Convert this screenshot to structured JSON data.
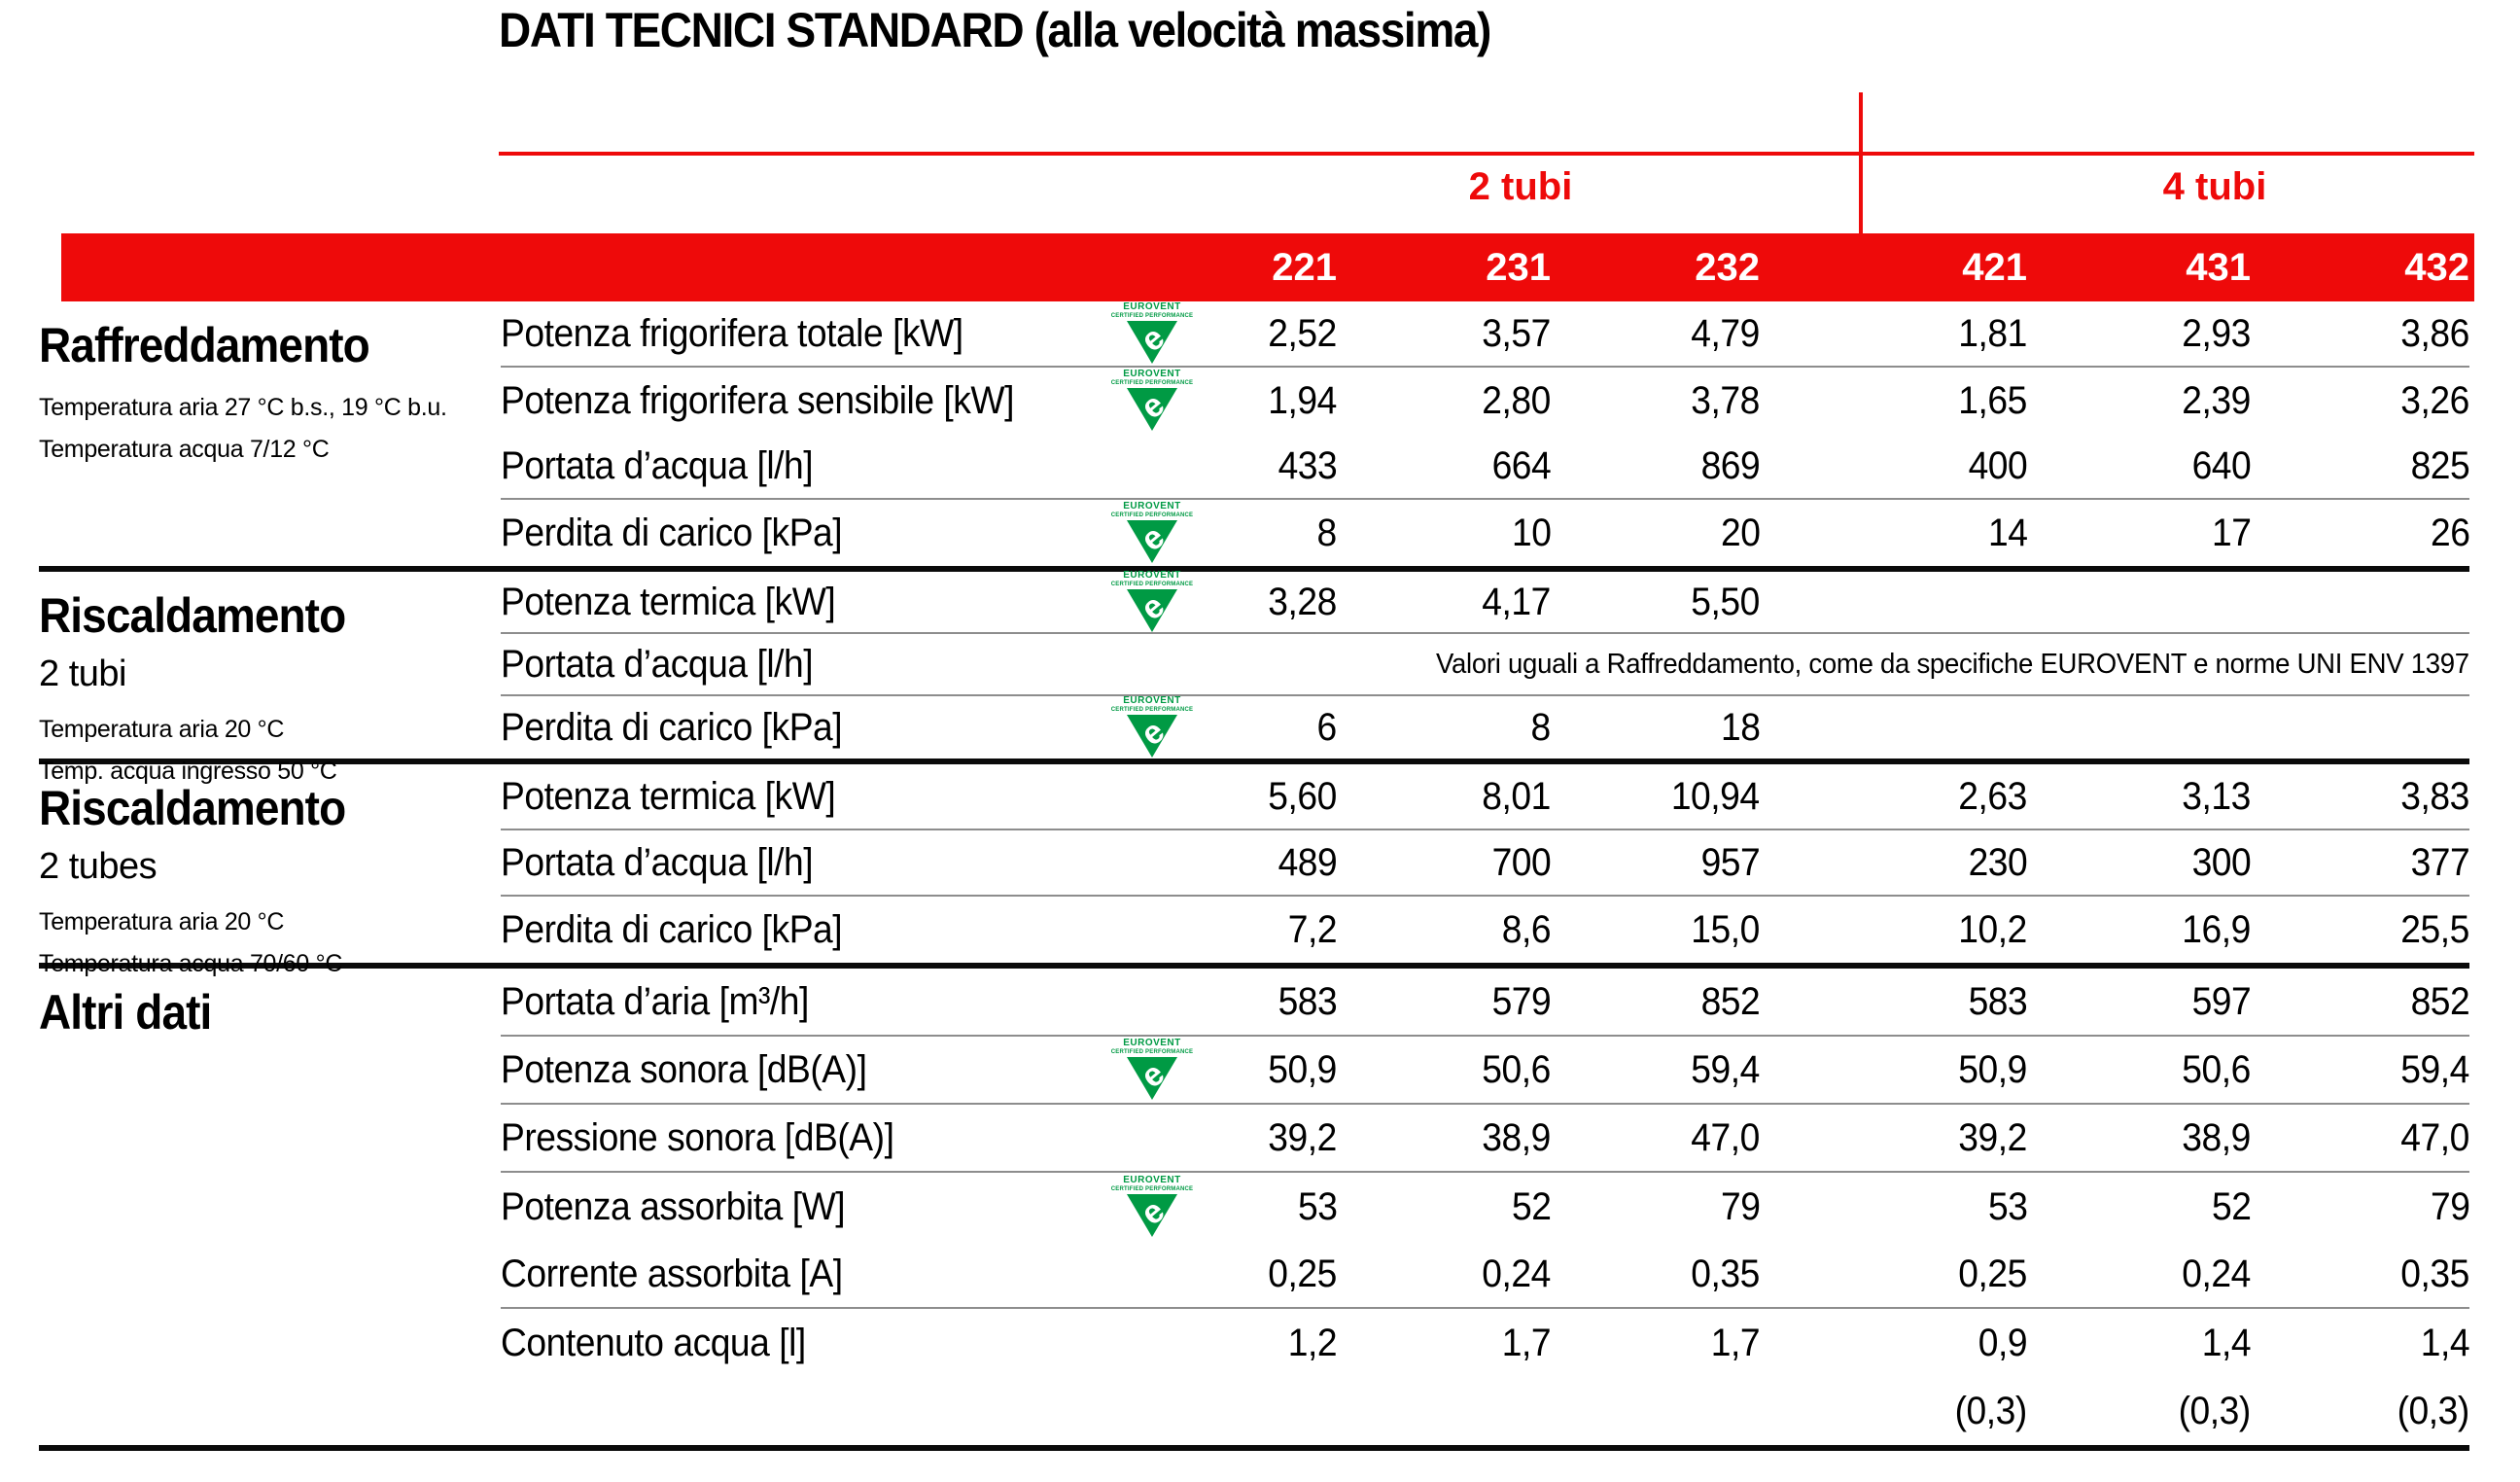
{
  "title": "DATI TECNICI STANDARD (alla velocità massima)",
  "colors": {
    "red": "#ee0a0a",
    "green": "#009a44",
    "divider_gray": "#8d8d8d",
    "section_line_black": "#0a0a0a",
    "text": "#000000"
  },
  "column_groups": [
    {
      "label": "2 tubi"
    },
    {
      "label": "4 tubi"
    }
  ],
  "models": [
    "221",
    "231",
    "232",
    "421",
    "431",
    "432"
  ],
  "eurovent_icon": {
    "line1": "EUROVENT",
    "line2": "CERTIFIED PERFORMANCE"
  },
  "sections": [
    {
      "title": "Raffreddamento",
      "subtitle": "",
      "conditions": [
        "Temperatura aria 27 °C b.s., 19 °C b.u.",
        "Temperatura acqua 7/12 °C"
      ],
      "rows": [
        {
          "label": "Potenza frigorifera totale [kW]",
          "eurovent": true,
          "divider": true,
          "values": [
            "2,52",
            "3,57",
            "4,79",
            "1,81",
            "2,93",
            "3,86"
          ]
        },
        {
          "label": "Potenza frigorifera sensibile [kW]",
          "eurovent": true,
          "divider": false,
          "values": [
            "1,94",
            "2,80",
            "3,78",
            "1,65",
            "2,39",
            "3,26"
          ]
        },
        {
          "label": "Portata d’acqua [l/h]",
          "eurovent": false,
          "divider": true,
          "values": [
            "433",
            "664",
            "869",
            "400",
            "640",
            "825"
          ]
        },
        {
          "label": "Perdita di carico [kPa]",
          "eurovent": true,
          "divider": false,
          "values": [
            "8",
            "10",
            "20",
            "14",
            "17",
            "26"
          ]
        }
      ]
    },
    {
      "title": "Riscaldamento",
      "subtitle": "2 tubi",
      "conditions": [
        "Temperatura aria 20 °C",
        "Temp. acqua ingresso 50 °C"
      ],
      "rows": [
        {
          "label": "Potenza termica [kW]",
          "eurovent": true,
          "divider": true,
          "values": [
            "3,28",
            "4,17",
            "5,50",
            "",
            "",
            ""
          ]
        },
        {
          "label": "Portata d’acqua [l/h]",
          "eurovent": false,
          "divider": true,
          "note": "Valori uguali a Raffreddamento, come da specifiche EUROVENT e norme UNI ENV 1397"
        },
        {
          "label": "Perdita di carico [kPa]",
          "eurovent": true,
          "divider": false,
          "values": [
            "6",
            "8",
            "18",
            "",
            "",
            ""
          ]
        }
      ]
    },
    {
      "title": "Riscaldamento",
      "subtitle": "2 tubes",
      "conditions": [
        "Temperatura aria 20 °C",
        "Temperatura acqua 70/60 °C"
      ],
      "rows": [
        {
          "label": "Potenza termica [kW]",
          "eurovent": false,
          "divider": true,
          "values": [
            "5,60",
            "8,01",
            "10,94",
            "2,63",
            "3,13",
            "3,83"
          ]
        },
        {
          "label": "Portata d’acqua [l/h]",
          "eurovent": false,
          "divider": true,
          "values": [
            "489",
            "700",
            "957",
            "230",
            "300",
            "377"
          ]
        },
        {
          "label": "Perdita di carico [kPa]",
          "eurovent": false,
          "divider": false,
          "values": [
            "7,2",
            "8,6",
            "15,0",
            "10,2",
            "16,9",
            "25,5"
          ]
        }
      ]
    },
    {
      "title": "Altri dati",
      "subtitle": "",
      "conditions": [],
      "rows": [
        {
          "label": "Portata d’aria [m³/h]",
          "eurovent": false,
          "divider": true,
          "values": [
            "583",
            "579",
            "852",
            "583",
            "597",
            "852"
          ]
        },
        {
          "label": "Potenza sonora [dB(A)]",
          "eurovent": true,
          "divider": true,
          "values": [
            "50,9",
            "50,6",
            "59,4",
            "50,9",
            "50,6",
            "59,4"
          ]
        },
        {
          "label": "Pressione sonora [dB(A)]",
          "eurovent": false,
          "divider": true,
          "values": [
            "39,2",
            "38,9",
            "47,0",
            "39,2",
            "38,9",
            "47,0"
          ]
        },
        {
          "label": "Potenza assorbita [W]",
          "eurovent": true,
          "divider": false,
          "values": [
            "53",
            "52",
            "79",
            "53",
            "52",
            "79"
          ]
        },
        {
          "label": "Corrente assorbita [A]",
          "eurovent": false,
          "divider": true,
          "values": [
            "0,25",
            "0,24",
            "0,35",
            "0,25",
            "0,24",
            "0,35"
          ]
        },
        {
          "label": "Contenuto acqua [l]",
          "eurovent": false,
          "divider": false,
          "values": [
            "1,2",
            "1,7",
            "1,7",
            "0,9",
            "1,4",
            "1,4"
          ]
        },
        {
          "label": "",
          "eurovent": false,
          "divider": false,
          "values": [
            "",
            "",
            "",
            "(0,3)",
            "(0,3)",
            "(0,3)"
          ]
        }
      ]
    }
  ]
}
